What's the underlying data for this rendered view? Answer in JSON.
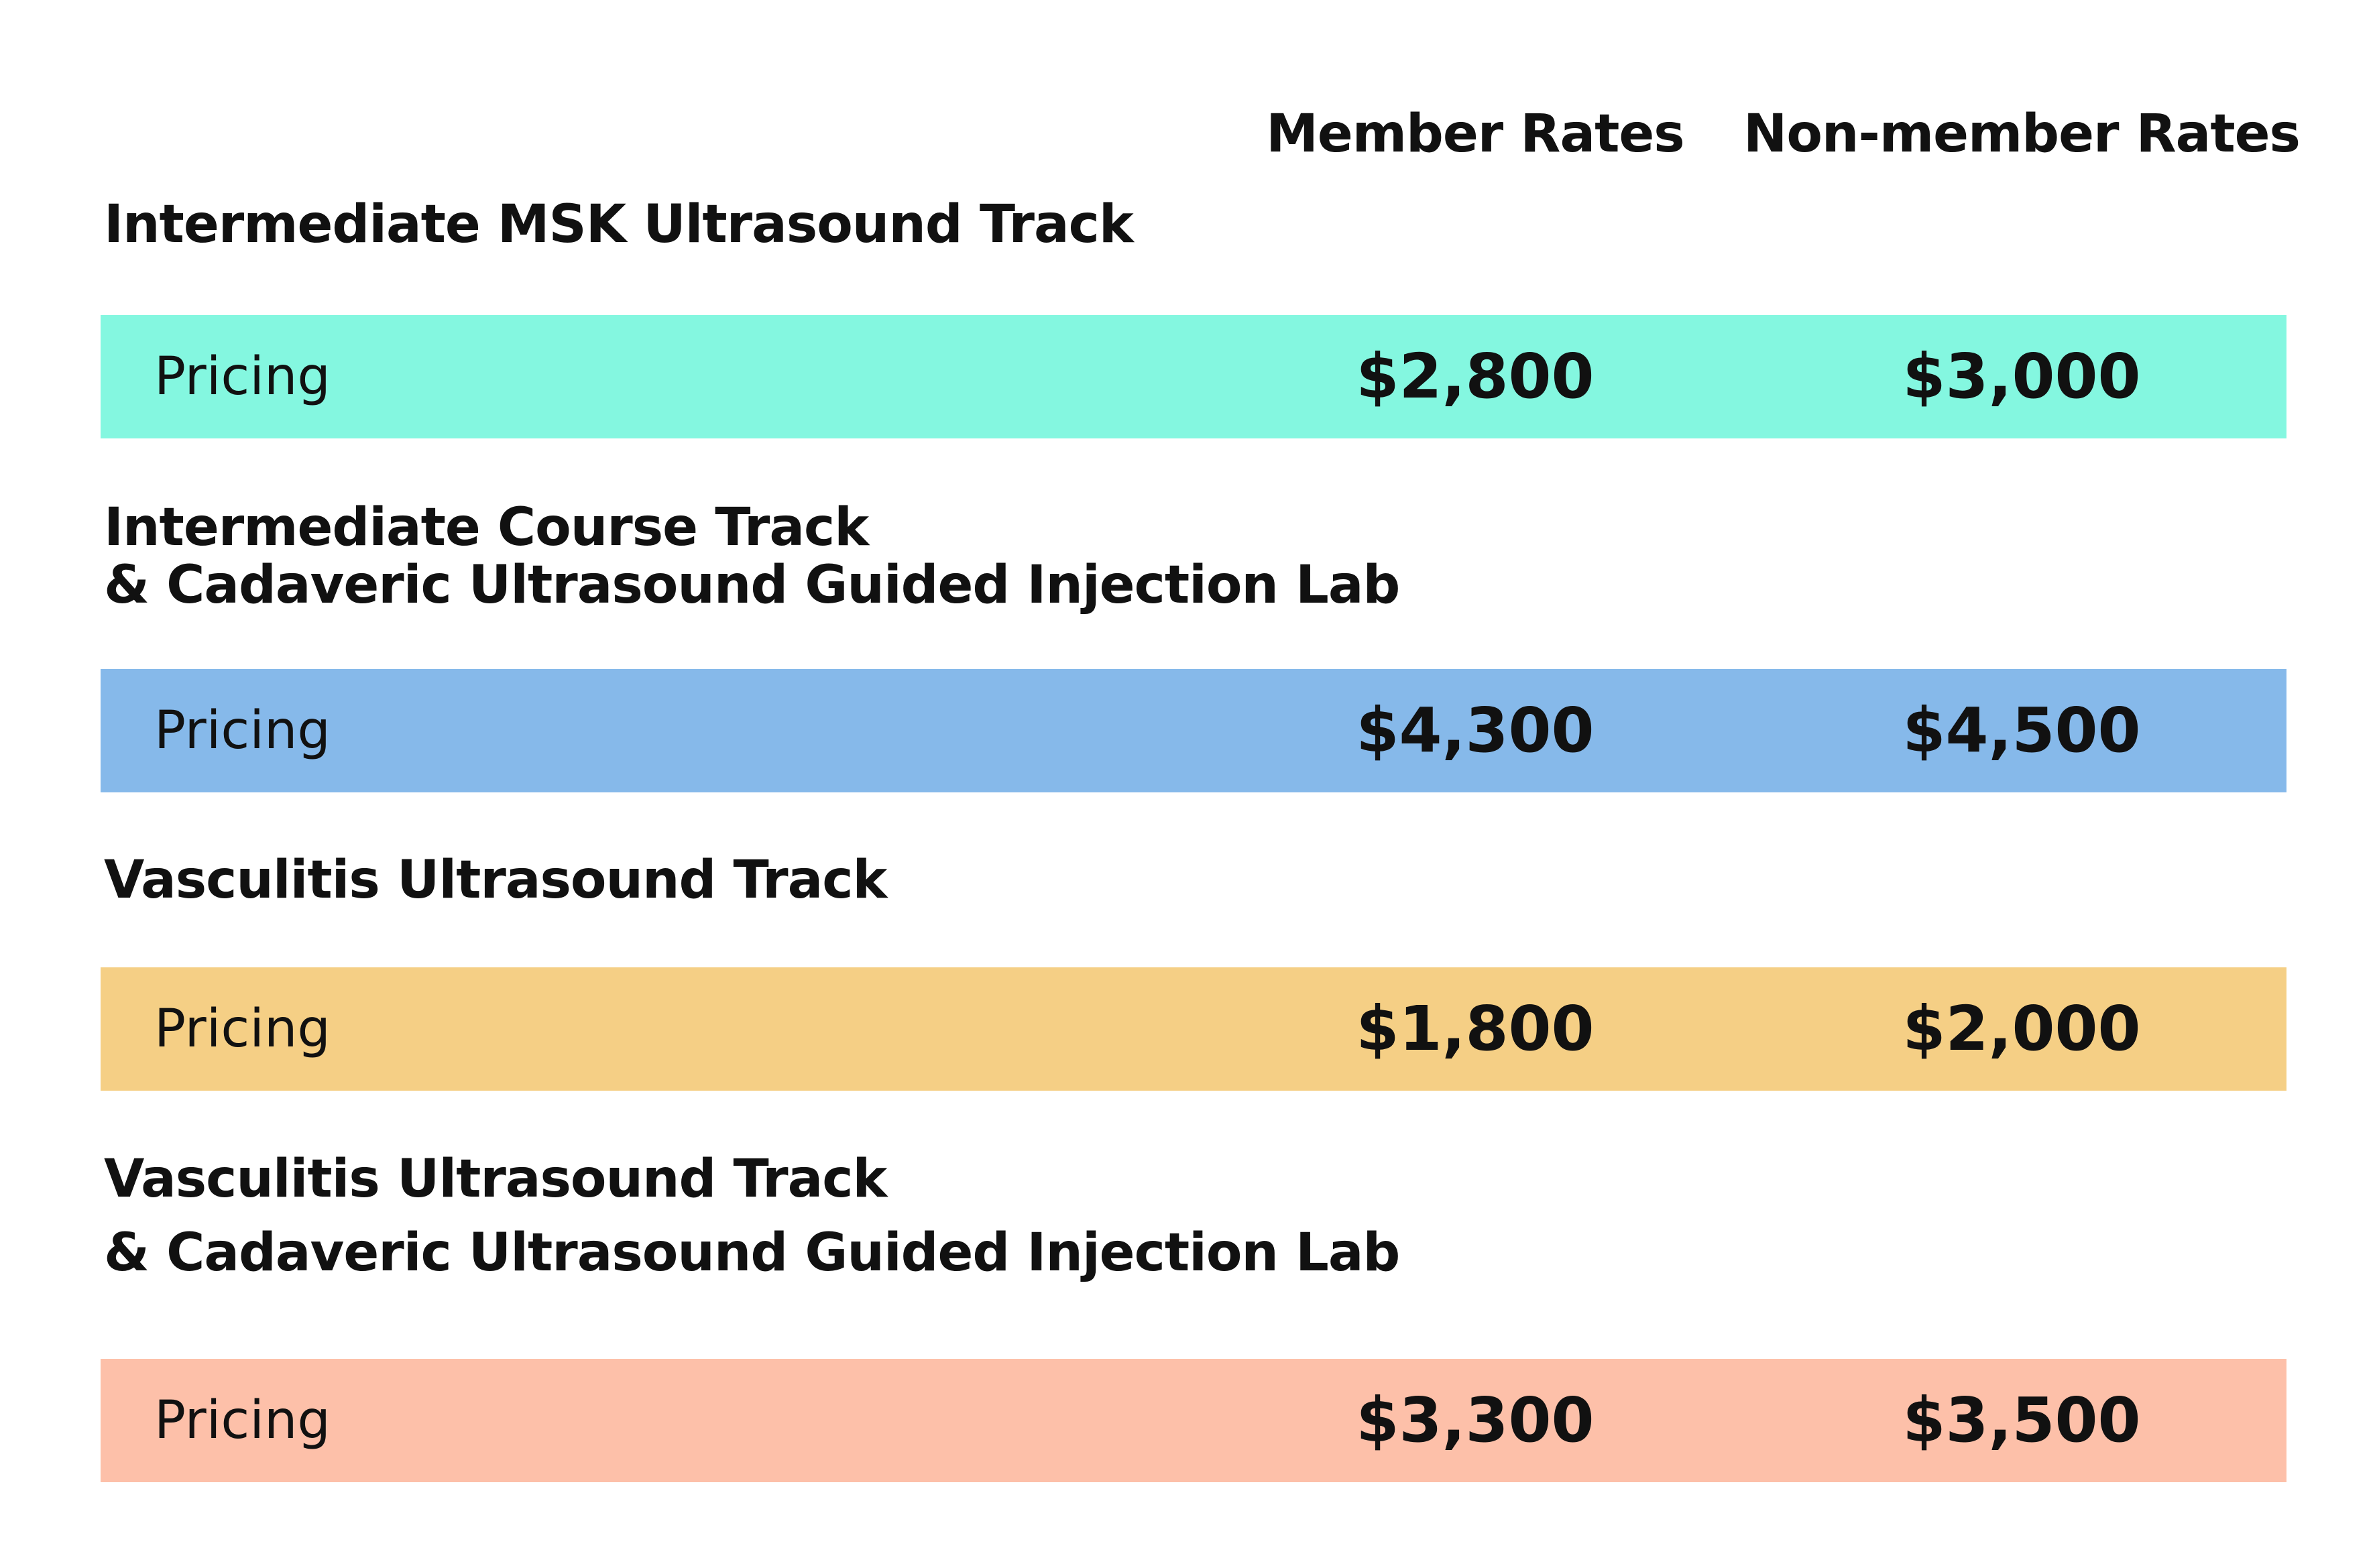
{
  "columns": {
    "member": "Member Rates",
    "nonmember": "Non-member Rates"
  },
  "sections": [
    {
      "title_lines": [
        "Intermediate MSK Ultrasound Track"
      ],
      "row_label": "Pricing",
      "member_price": "$2,800",
      "nonmember_price": "$3,000",
      "color": "#84f7e0"
    },
    {
      "title_lines": [
        "Intermediate Course Track",
        "& Cadaveric Ultrasound Guided Injection Lab"
      ],
      "row_label": "Pricing",
      "member_price": "$4,300",
      "nonmember_price": "$4,500",
      "color": "#86b9ea"
    },
    {
      "title_lines": [
        "Vasculitis Ultrasound Track"
      ],
      "row_label": "Pricing",
      "member_price": "$1,800",
      "nonmember_price": "$2,000",
      "color": "#f5cf85"
    },
    {
      "title_lines": [
        "Vasculitis Ultrasound Track",
        "& Cadaveric Ultrasound Guided Injection Lab"
      ],
      "row_label": "Pricing",
      "member_price": "$3,300",
      "nonmember_price": "$3,500",
      "color": "#fdc0a9"
    }
  ]
}
